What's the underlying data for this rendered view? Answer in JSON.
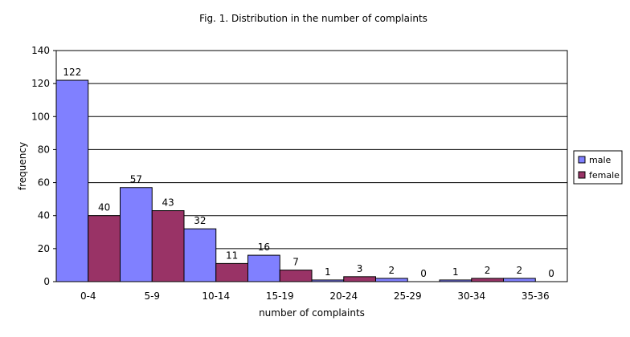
{
  "chart_data": {
    "type": "bar",
    "title": "Fig. 1. Distribution in the number of complaints",
    "xlabel": "number of complaints",
    "ylabel": "frequency",
    "categories": [
      "0-4",
      "5-9",
      "10-14",
      "15-19",
      "20-24",
      "25-29",
      "30-34",
      "35-36"
    ],
    "series": [
      {
        "name": "male",
        "values": [
          122,
          57,
          32,
          16,
          1,
          2,
          1,
          2
        ],
        "color": "#8080ff"
      },
      {
        "name": "female",
        "values": [
          40,
          43,
          11,
          7,
          3,
          0,
          2,
          0
        ],
        "color": "#993366"
      }
    ],
    "ylim": [
      0,
      140
    ],
    "yticks": [
      0,
      20,
      40,
      60,
      80,
      100,
      120,
      140
    ],
    "grid": true,
    "legend": "right",
    "plot_background": "#ffffff",
    "gridline_color": "#000000"
  }
}
